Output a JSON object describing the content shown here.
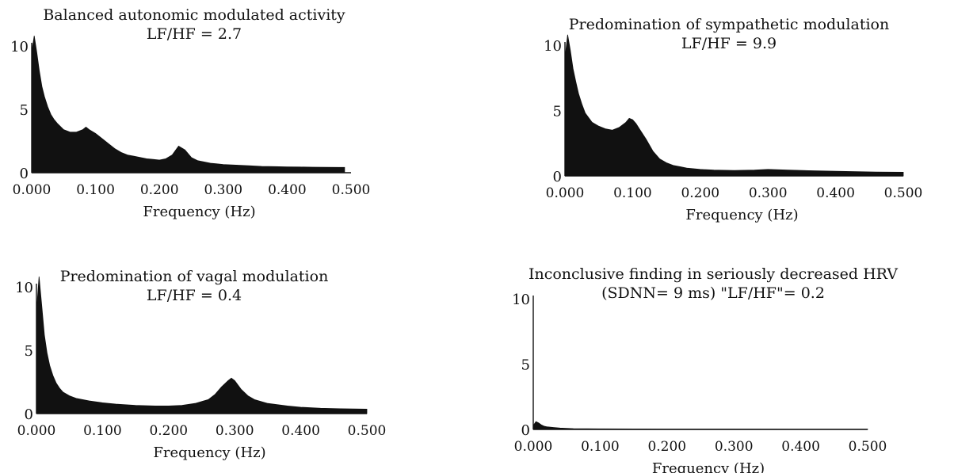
{
  "chart_data": [
    {
      "type": "area",
      "title": "Balanced autonomic modulated activity",
      "subtitle": "LF/HF = 2.7",
      "xlabel": "Frequency (Hz)",
      "ylabel": "",
      "xlim": [
        0,
        0.5
      ],
      "ylim": [
        0,
        10
      ],
      "xticks": [
        "0.000",
        "0.100",
        "0.200",
        "0.300",
        "0.400",
        "0.500"
      ],
      "yticks": [
        "0",
        "5",
        "10"
      ],
      "grid": false,
      "x": [
        0.0,
        0.004,
        0.008,
        0.012,
        0.016,
        0.02,
        0.025,
        0.03,
        0.035,
        0.04,
        0.05,
        0.06,
        0.07,
        0.08,
        0.085,
        0.09,
        0.1,
        0.11,
        0.12,
        0.13,
        0.14,
        0.15,
        0.16,
        0.17,
        0.18,
        0.19,
        0.2,
        0.21,
        0.22,
        0.23,
        0.24,
        0.25,
        0.26,
        0.27,
        0.28,
        0.29,
        0.3,
        0.32,
        0.34,
        0.36,
        0.38,
        0.4,
        0.42,
        0.44,
        0.46,
        0.48,
        0.49
      ],
      "y": [
        9.5,
        10.8,
        9.5,
        8.0,
        6.8,
        6.0,
        5.2,
        4.6,
        4.2,
        3.9,
        3.4,
        3.2,
        3.2,
        3.4,
        3.6,
        3.4,
        3.1,
        2.7,
        2.3,
        1.9,
        1.6,
        1.4,
        1.3,
        1.2,
        1.1,
        1.05,
        1.0,
        1.1,
        1.4,
        2.1,
        1.8,
        1.2,
        0.95,
        0.85,
        0.75,
        0.7,
        0.65,
        0.6,
        0.55,
        0.5,
        0.48,
        0.46,
        0.45,
        0.44,
        0.43,
        0.42,
        0.42
      ]
    },
    {
      "type": "area",
      "title": "Predomination of sympathetic modulation",
      "subtitle": "LF/HF = 9.9",
      "xlabel": "Frequency (Hz)",
      "ylabel": "",
      "xlim": [
        0,
        0.5
      ],
      "ylim": [
        0,
        10
      ],
      "xticks": [
        "0.000",
        "0.100",
        "0.200",
        "0.300",
        "0.400",
        "0.500"
      ],
      "yticks": [
        "0",
        "5",
        "10"
      ],
      "grid": false,
      "x": [
        0.0,
        0.004,
        0.008,
        0.012,
        0.016,
        0.02,
        0.025,
        0.03,
        0.04,
        0.05,
        0.06,
        0.07,
        0.08,
        0.09,
        0.095,
        0.1,
        0.105,
        0.11,
        0.12,
        0.13,
        0.14,
        0.15,
        0.16,
        0.17,
        0.18,
        0.2,
        0.22,
        0.25,
        0.28,
        0.3,
        0.33,
        0.36,
        0.4,
        0.43,
        0.46,
        0.5
      ],
      "y": [
        9.0,
        10.8,
        9.6,
        8.2,
        7.2,
        6.3,
        5.5,
        4.8,
        4.1,
        3.8,
        3.6,
        3.5,
        3.7,
        4.1,
        4.4,
        4.3,
        4.0,
        3.6,
        2.8,
        1.9,
        1.3,
        1.0,
        0.8,
        0.7,
        0.6,
        0.5,
        0.45,
        0.42,
        0.45,
        0.5,
        0.45,
        0.4,
        0.35,
        0.32,
        0.3,
        0.28
      ]
    },
    {
      "type": "area",
      "title": "Predomination of vagal modulation",
      "subtitle": "LF/HF = 0.4",
      "xlabel": "Frequency (Hz)",
      "ylabel": "",
      "xlim": [
        0,
        0.5
      ],
      "ylim": [
        0,
        10
      ],
      "xticks": [
        "0.000",
        "0.100",
        "0.200",
        "0.300",
        "0.400",
        "0.500"
      ],
      "yticks": [
        "0",
        "5",
        "10"
      ],
      "grid": false,
      "x": [
        0.0,
        0.004,
        0.008,
        0.012,
        0.016,
        0.02,
        0.025,
        0.03,
        0.035,
        0.04,
        0.05,
        0.06,
        0.08,
        0.1,
        0.12,
        0.15,
        0.18,
        0.2,
        0.22,
        0.24,
        0.26,
        0.27,
        0.28,
        0.29,
        0.295,
        0.3,
        0.31,
        0.32,
        0.33,
        0.35,
        0.38,
        0.4,
        0.43,
        0.46,
        0.5
      ],
      "y": [
        8.0,
        10.8,
        8.5,
        6.2,
        4.8,
        3.8,
        3.0,
        2.4,
        2.0,
        1.7,
        1.4,
        1.2,
        1.0,
        0.85,
        0.75,
        0.65,
        0.6,
        0.6,
        0.65,
        0.8,
        1.1,
        1.5,
        2.1,
        2.6,
        2.8,
        2.6,
        1.9,
        1.4,
        1.1,
        0.8,
        0.6,
        0.5,
        0.42,
        0.38,
        0.35
      ]
    },
    {
      "type": "area",
      "title": "Inconclusive finding in seriously decreased HRV",
      "subtitle": "(SDNN= 9 ms) \"LF/HF\"= 0.2",
      "xlabel": "Frequency (Hz)",
      "ylabel": "",
      "xlim": [
        0,
        0.5
      ],
      "ylim": [
        0,
        10
      ],
      "xticks": [
        "0.000",
        "0.100",
        "0.200",
        "0.300",
        "0.400",
        "0.500"
      ],
      "yticks": [
        "0",
        "5",
        "10"
      ],
      "grid": false,
      "x": [
        0.0,
        0.004,
        0.008,
        0.012,
        0.016,
        0.02,
        0.03,
        0.04,
        0.05,
        0.06,
        0.08,
        0.1,
        0.2,
        0.3,
        0.4,
        0.5
      ],
      "y": [
        0.3,
        0.6,
        0.5,
        0.35,
        0.25,
        0.2,
        0.15,
        0.1,
        0.08,
        0.06,
        0.05,
        0.04,
        0.03,
        0.03,
        0.02,
        0.02
      ]
    }
  ]
}
